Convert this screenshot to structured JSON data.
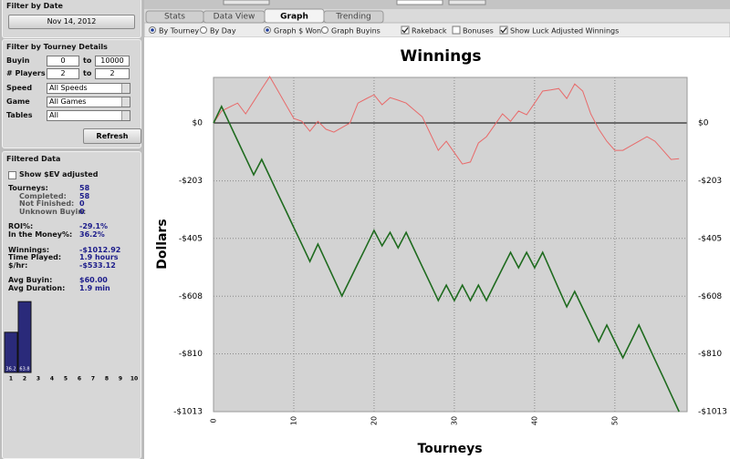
{
  "sidebar": {
    "filter_date": {
      "title": "Filter by Date",
      "date": "Nov 14, 2012"
    },
    "filter_details": {
      "title": "Filter by Tourney Details",
      "ranges": [
        {
          "label": "Buyin",
          "from": 0,
          "to_label": "to",
          "to": 10000
        },
        {
          "label": "# Players",
          "from": 2,
          "to_label": "to",
          "to": 2
        }
      ],
      "selects": [
        {
          "label": "Speed",
          "value": "All Speeds"
        },
        {
          "label": "Game",
          "value": "All Games"
        },
        {
          "label": "Tables",
          "value": "All"
        }
      ],
      "button": "Refresh"
    },
    "filtered": {
      "title": "Filtered Data",
      "ev_checkbox": {
        "label": "Show $EV adjusted",
        "checked": false
      },
      "stat_groups": [
        [
          {
            "label": "Tourneys:",
            "value": "58",
            "sub": false
          },
          {
            "label": "Completed:",
            "value": "58",
            "sub": true
          },
          {
            "label": "Not Finished:",
            "value": "0",
            "sub": true
          },
          {
            "label": "Unknown Buyin:",
            "value": "0",
            "sub": true
          }
        ],
        [
          {
            "label": "ROI%:",
            "value": "-29.1%",
            "sub": false
          },
          {
            "label": "In the Money%:",
            "value": "36.2%",
            "sub": false
          }
        ],
        [
          {
            "label": "Winnings:",
            "value": "-$1012.92",
            "sub": false
          },
          {
            "label": "Time Played:",
            "value": "1.9 hours",
            "sub": false
          },
          {
            "label": "$/hr:",
            "value": "-$533.12",
            "sub": false
          }
        ],
        [
          {
            "label": "Avg Buyin:",
            "value": "$60.00",
            "sub": false
          },
          {
            "label": "Avg Duration:",
            "value": "1.9 min",
            "sub": false
          }
        ]
      ]
    }
  },
  "mini_chart": {
    "type": "bar",
    "categories": [
      "1",
      "2",
      "3",
      "4",
      "5",
      "6",
      "7",
      "8",
      "9",
      "10"
    ],
    "values": [
      36.2,
      63.8,
      null,
      null,
      null,
      null,
      null,
      null,
      null,
      null
    ],
    "color": "#2a2a7a",
    "ylim": [
      0,
      100
    ]
  },
  "tabs": [
    {
      "label": "Stats",
      "active": false
    },
    {
      "label": "Data View",
      "active": false
    },
    {
      "label": "Graph",
      "active": true
    },
    {
      "label": "Trending",
      "active": false
    }
  ],
  "options": [
    {
      "kind": "radio",
      "label": "By Tourney",
      "checked": true
    },
    {
      "kind": "radio",
      "label": "By Day",
      "checked": false
    },
    {
      "kind": "radio",
      "label": "Graph $ Won",
      "checked": true
    },
    {
      "kind": "radio",
      "label": "Graph Buyins",
      "checked": false
    },
    {
      "kind": "checkbox",
      "label": "Rakeback",
      "checked": true
    },
    {
      "kind": "checkbox",
      "label": "Bonuses",
      "checked": false
    },
    {
      "kind": "checkbox",
      "label": "Show Luck Adjusted Winnings",
      "checked": true
    }
  ],
  "chart_data": {
    "type": "line",
    "title": "Winnings",
    "x_label": "Tourneys",
    "y_label": "Dollars",
    "x": [
      0,
      1,
      2,
      3,
      4,
      5,
      6,
      7,
      8,
      9,
      10,
      11,
      12,
      13,
      14,
      15,
      16,
      17,
      18,
      19,
      20,
      21,
      22,
      23,
      24,
      25,
      26,
      27,
      28,
      29,
      30,
      31,
      32,
      33,
      34,
      35,
      36,
      37,
      38,
      39,
      40,
      41,
      42,
      43,
      44,
      45,
      46,
      47,
      48,
      49,
      50,
      51,
      52,
      53,
      54,
      55,
      56,
      57,
      58
    ],
    "series": [
      {
        "color": "#1f6b1f",
        "values": [
          0,
          58,
          -2,
          -62,
          -122,
          -182,
          -128,
          -188,
          -248,
          -307,
          -367,
          -426,
          -486,
          -425,
          -486,
          -546,
          -607,
          -550,
          -492,
          -435,
          -377,
          -431,
          -384,
          -438,
          -384,
          -444,
          -504,
          -563,
          -623,
          -569,
          -623,
          -569,
          -623,
          -569,
          -623,
          -566,
          -510,
          -454,
          -508,
          -454,
          -508,
          -454,
          -518,
          -582,
          -645,
          -591,
          -650,
          -708,
          -767,
          -709,
          -767,
          -824,
          -767,
          -709,
          -770,
          -831,
          -891,
          -952,
          -1013
        ]
      },
      {
        "color": "#e86a6a",
        "values": [
          0,
          42,
          56,
          70,
          32,
          76,
          120,
          163,
          114,
          65,
          16,
          6,
          -29,
          6,
          -22,
          -32,
          -16,
          0,
          70,
          85,
          99,
          64,
          89,
          80,
          70,
          46,
          22,
          -37,
          -96,
          -64,
          -104,
          -144,
          -137,
          -70,
          -48,
          -8,
          32,
          6,
          42,
          29,
          70,
          112,
          116,
          121,
          86,
          137,
          112,
          32,
          -22,
          -64,
          -96,
          -96,
          -80,
          -64,
          -48,
          -64,
          -96,
          -128,
          -125
        ]
      }
    ],
    "xlim": [
      0,
      59
    ],
    "xticks": [
      0,
      10,
      20,
      30,
      40,
      50
    ],
    "ylim": [
      -1013,
      160
    ],
    "yticks": [
      {
        "value": 0,
        "label": "$0"
      },
      {
        "value": -203,
        "label": "-$203"
      },
      {
        "value": -405,
        "label": "-$405"
      },
      {
        "value": -608,
        "label": "-$608"
      },
      {
        "value": -810,
        "label": "-$810"
      },
      {
        "value": -1013,
        "label": "-$1013"
      }
    ],
    "grid": true
  }
}
